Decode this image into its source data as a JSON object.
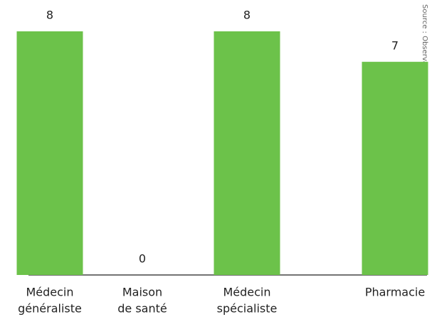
{
  "chart_data": {
    "type": "bar",
    "categories": [
      [
        "Médecin",
        "généraliste"
      ],
      [
        "Maison",
        "de santé"
      ],
      [
        "Médecin",
        "spécialiste"
      ],
      [
        "Pharmacie"
      ]
    ],
    "values": [
      8,
      0,
      8,
      7
    ],
    "color": "#6cc24a",
    "source": "Source : Observatoire"
  }
}
